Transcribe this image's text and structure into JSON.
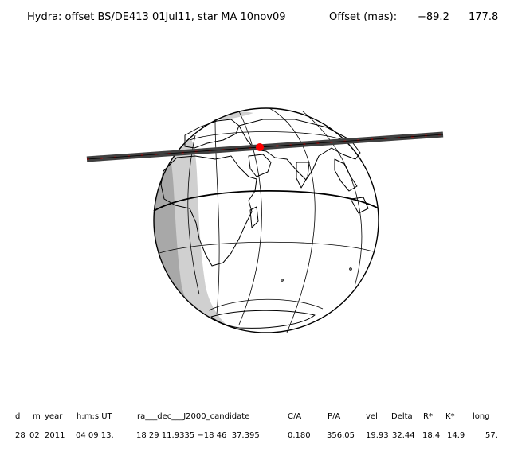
{
  "title": {
    "main": "Hydra: offset BS/DE413 01Jul11, star MA 10nov09",
    "offset_label": "Offset (mas):",
    "offset_x": "−89.2",
    "offset_y": "177.8"
  },
  "table": {
    "headers": [
      "d",
      "m",
      "year",
      "h:m:s UT",
      "ra___dec___J2000_candidate",
      "C/A",
      "P/A",
      "vel",
      "Delta",
      "R*",
      "K*",
      "long"
    ],
    "values": [
      "28",
      "02",
      "2011",
      "04 09 13.",
      "18 29 11.9335 −18 46  37.395",
      "0.180",
      "356.05",
      "19.93",
      "32.44",
      "18.4",
      "14.9",
      "57."
    ]
  },
  "colors": {
    "day": "#ffffff",
    "twilight": "#d0d0d0",
    "night": "#a8a8a8",
    "track": "#404040",
    "track_marks": "#e01010",
    "center_point": "#ff0000",
    "lines": "#000000"
  }
}
